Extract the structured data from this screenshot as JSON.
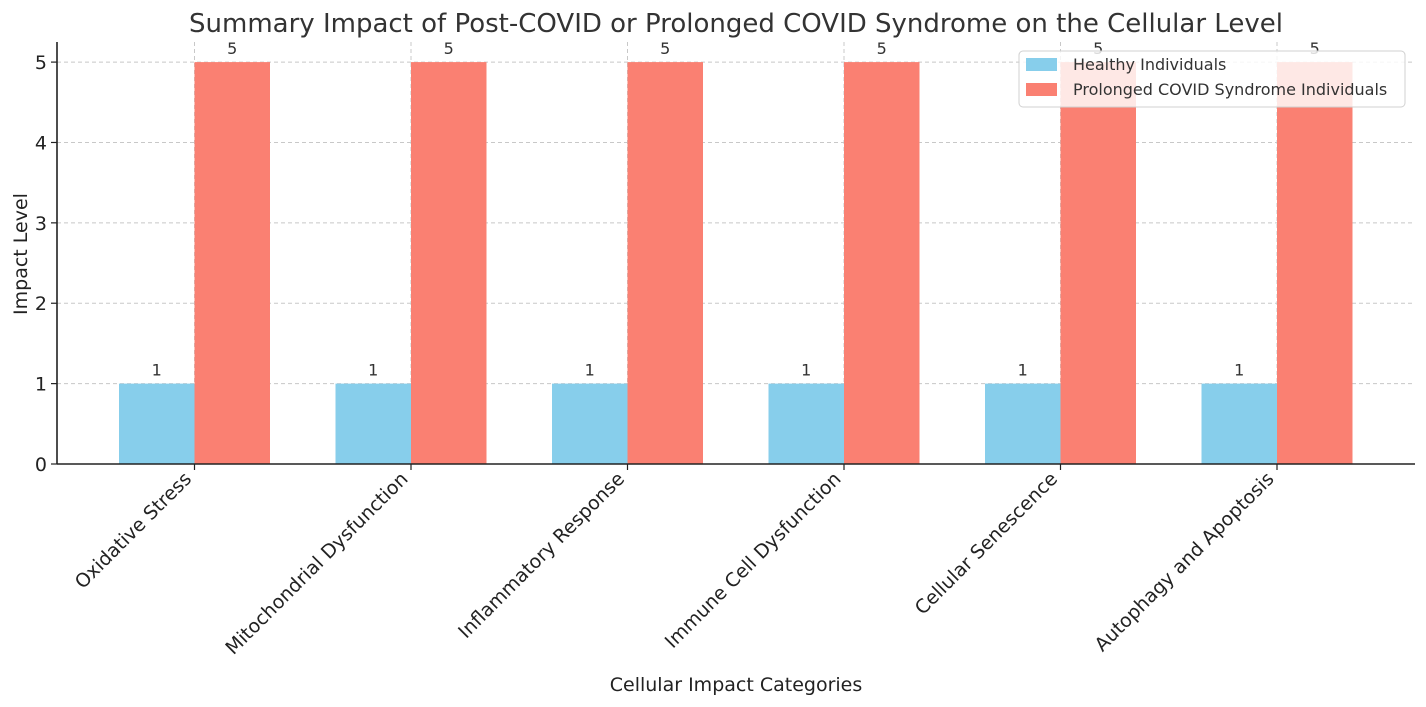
{
  "chart_data": {
    "type": "bar",
    "title": "Summary Impact of Post-COVID or Prolonged COVID Syndrome on the Cellular Level",
    "xlabel": "Cellular Impact Categories",
    "ylabel": "Impact Level",
    "categories": [
      "Oxidative Stress",
      "Mitochondrial Dysfunction",
      "Inflammatory Response",
      "Immune Cell Dysfunction",
      "Cellular Senescence",
      "Autophagy and Apoptosis"
    ],
    "series": [
      {
        "name": "Healthy Individuals",
        "values": [
          1,
          1,
          1,
          1,
          1,
          1
        ],
        "color": "#87ceeb"
      },
      {
        "name": "Prolonged COVID Syndrome Individuals",
        "values": [
          5,
          5,
          5,
          5,
          5,
          5
        ],
        "color": "#fa8072"
      }
    ],
    "ylim": [
      0,
      5.25
    ],
    "yticks": [
      "0",
      "1",
      "2",
      "3",
      "4",
      "5"
    ],
    "grid": true,
    "legend_position": "top-right",
    "data_labels": true
  }
}
